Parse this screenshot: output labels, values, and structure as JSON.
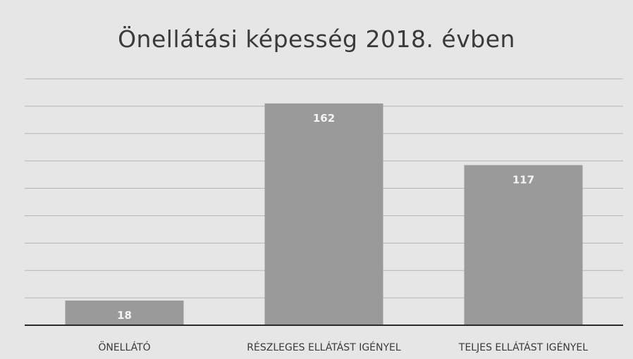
{
  "chart_data": {
    "type": "bar",
    "title": "Önellátási képesség 2018. évben",
    "categories": [
      "ÖNELLÁTÓ",
      "RÉSZLEGES ELLÁTÁST IGÉNYEL",
      "TELJES ELLÁTÁST IGÉNYEL"
    ],
    "values": [
      18,
      162,
      117
    ],
    "ylim": [
      0,
      180
    ],
    "grid": true,
    "legend": "none",
    "colors": {
      "bar": "#9a9a9a",
      "grid": "#b5b5b5",
      "axis": "#2a2a2a"
    }
  }
}
